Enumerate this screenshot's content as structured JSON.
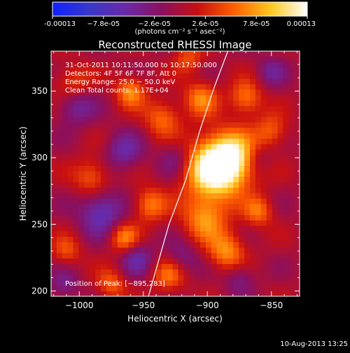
{
  "chart_data": {
    "type": "heatmap",
    "title": "Reconstructed RHESSI Image",
    "xlabel": "Heliocentric X (arcsec)",
    "ylabel": "Heliocentric Y (arcsec)",
    "xlim": [
      -1022,
      -828
    ],
    "ylim": [
      196,
      380
    ],
    "xticks": [
      -1000,
      -950,
      -900,
      -850
    ],
    "xtick_labels": [
      "−1000",
      "−950",
      "−900",
      "−850"
    ],
    "yticks": [
      200,
      250,
      300,
      350
    ],
    "ytick_labels": [
      "200",
      "250",
      "300",
      "350"
    ],
    "colorbar": {
      "min": -0.00013,
      "max": 0.00013,
      "tick_labels": [
        "-0.00013",
        "−7.8e-05",
        "−2.6e-05",
        "2.6e-05",
        "7.8e-05",
        "0.00013"
      ],
      "unit_label": "(photons cm⁻² s⁻¹ asec⁻²)",
      "stops": [
        "#1020ff",
        "#3838c8",
        "#6a2aa8",
        "#8a1060",
        "#c81010",
        "#ff6000",
        "#ffc820",
        "#ffffff"
      ]
    },
    "annotations": [
      "31-Oct-2011 10:11:50.000 to 10:17:50.000",
      "Detectors: 4F 5F 6F 7F 8F, Att 0",
      "Energy Range: 25.0 − 50.0 keV",
      "Clean    Total counts: 1.17E+04"
    ],
    "peak_label": "Position of Peak: [−895,283]",
    "peak": [
      -895,
      283
    ],
    "limb": [
      [
        -946,
        196
      ],
      [
        -930,
        250
      ],
      [
        -917,
        283
      ],
      [
        -906,
        320
      ],
      [
        -895,
        352
      ],
      [
        -884,
        380
      ]
    ],
    "sources": [
      {
        "x": -895,
        "y": 292,
        "amp": 1.0,
        "s": 16
      },
      {
        "x": -880,
        "y": 300,
        "amp": 0.7,
        "s": 14
      },
      {
        "x": -902,
        "y": 255,
        "amp": 0.55,
        "s": 12
      },
      {
        "x": -885,
        "y": 230,
        "amp": 0.55,
        "s": 10
      },
      {
        "x": -930,
        "y": 212,
        "amp": 0.45,
        "s": 9
      },
      {
        "x": -965,
        "y": 240,
        "amp": 0.55,
        "s": 8
      },
      {
        "x": -990,
        "y": 285,
        "amp": 0.45,
        "s": 10
      },
      {
        "x": -945,
        "y": 265,
        "amp": 0.5,
        "s": 9
      },
      {
        "x": -935,
        "y": 330,
        "amp": 0.45,
        "s": 10
      },
      {
        "x": -960,
        "y": 350,
        "amp": 0.55,
        "s": 8
      },
      {
        "x": -905,
        "y": 345,
        "amp": 0.5,
        "s": 9
      },
      {
        "x": -870,
        "y": 345,
        "amp": 0.5,
        "s": 9
      },
      {
        "x": -1005,
        "y": 355,
        "amp": 0.4,
        "s": 10
      },
      {
        "x": -860,
        "y": 260,
        "amp": 0.45,
        "s": 8
      },
      {
        "x": -850,
        "y": 320,
        "amp": 0.4,
        "s": 9
      },
      {
        "x": -1010,
        "y": 230,
        "amp": 0.35,
        "s": 8
      },
      {
        "x": -975,
        "y": 205,
        "amp": 0.4,
        "s": 8
      },
      {
        "x": -915,
        "y": 375,
        "amp": 0.35,
        "s": 8
      },
      {
        "x": -983,
        "y": 260,
        "amp": -0.55,
        "s": 12
      },
      {
        "x": -1003,
        "y": 340,
        "amp": -0.45,
        "s": 10
      },
      {
        "x": -965,
        "y": 305,
        "amp": -0.4,
        "s": 10
      },
      {
        "x": -955,
        "y": 225,
        "amp": -0.4,
        "s": 9
      },
      {
        "x": -925,
        "y": 300,
        "amp": -0.3,
        "s": 9
      },
      {
        "x": -860,
        "y": 300,
        "amp": -0.25,
        "s": 8
      },
      {
        "x": -920,
        "y": 225,
        "amp": -0.3,
        "s": 9
      },
      {
        "x": -875,
        "y": 210,
        "amp": -0.3,
        "s": 8
      },
      {
        "x": -850,
        "y": 365,
        "amp": -0.3,
        "s": 8
      },
      {
        "x": -1012,
        "y": 205,
        "amp": -0.3,
        "s": 8
      }
    ]
  },
  "footer": {
    "timestamp": "10-Aug-2013 13:25"
  }
}
